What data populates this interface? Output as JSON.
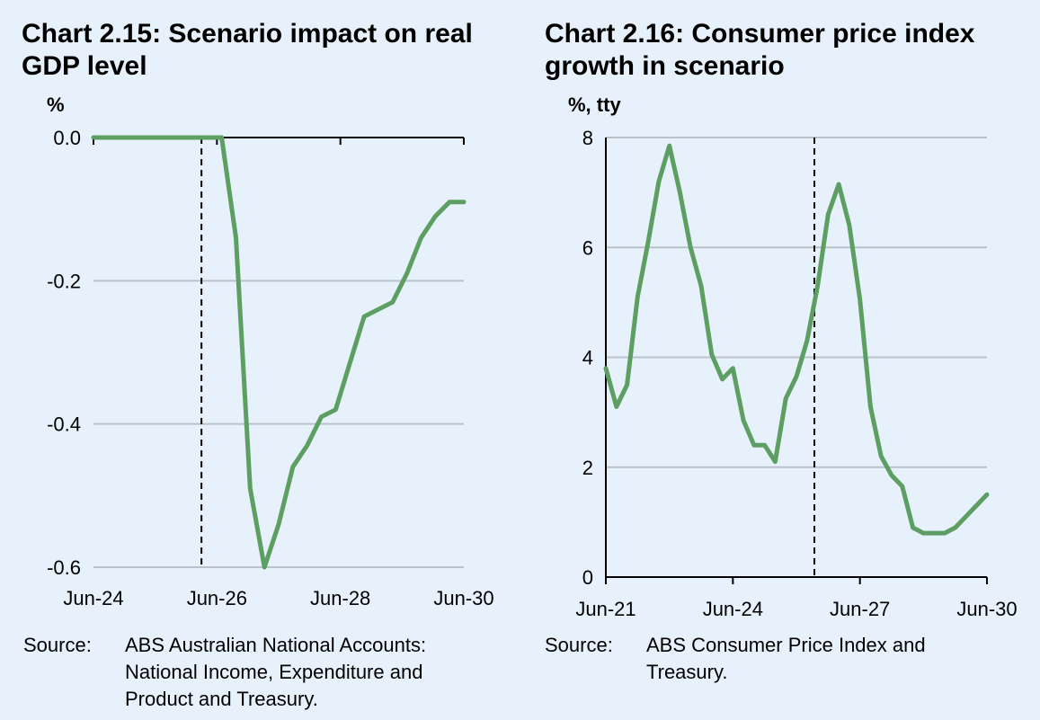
{
  "colors": {
    "line": "#5d9e62",
    "grid": "#b9c2cb",
    "axis": "#000000",
    "background": "#e6f1fb"
  },
  "chart_data": [
    {
      "type": "line",
      "title": "Chart 2.15: Scenario impact on real GDP level",
      "ylabel": "%",
      "xlabel": "",
      "x_tick_labels": [
        "Jun-24",
        "Jun-26",
        "Jun-28",
        "Jun-30"
      ],
      "y_tick_labels": [
        "0.0",
        "-0.2",
        "-0.4",
        "-0.6"
      ],
      "ylim": [
        -0.6,
        0.0
      ],
      "grid": true,
      "vertical_marker": "Jun-26",
      "series": [
        {
          "values": [
            0,
            0,
            0,
            0,
            0,
            0,
            0,
            0,
            0,
            0,
            -0.14,
            -0.49,
            -0.6,
            -0.54,
            -0.46,
            -0.43,
            -0.39,
            -0.38,
            -0.315,
            -0.25,
            -0.24,
            -0.23,
            -0.19,
            -0.14,
            -0.11,
            -0.09,
            -0.09
          ]
        }
      ],
      "source_label": "Source:",
      "source_text": [
        "ABS Australian National Accounts:",
        "National Income, Expenditure and",
        "Product and Treasury."
      ]
    },
    {
      "type": "line",
      "title": "Chart 2.16: Consumer price index growth in scenario",
      "ylabel": "%, tty",
      "xlabel": "",
      "x_tick_labels": [
        "Jun-21",
        "Jun-24",
        "Jun-27",
        "Jun-30"
      ],
      "y_tick_labels": [
        "0",
        "2",
        "4",
        "6",
        "8"
      ],
      "ylim": [
        0,
        8
      ],
      "grid": true,
      "vertical_marker": "Sep-25",
      "series": [
        {
          "values": [
            3.8,
            3.1,
            3.5,
            5.1,
            6.1,
            7.2,
            7.85,
            7.0,
            6.0,
            5.3,
            4.05,
            3.6,
            3.8,
            2.85,
            2.4,
            2.4,
            2.1,
            3.25,
            3.65,
            4.3,
            5.3,
            6.6,
            7.15,
            6.4,
            5.05,
            3.1,
            2.2,
            1.85,
            1.65,
            0.9,
            0.8,
            0.8,
            0.8,
            0.9,
            1.1,
            1.3,
            1.5
          ]
        }
      ],
      "source_label": "Source:",
      "source_text": [
        "ABS Consumer Price Index and",
        "Treasury."
      ]
    }
  ]
}
